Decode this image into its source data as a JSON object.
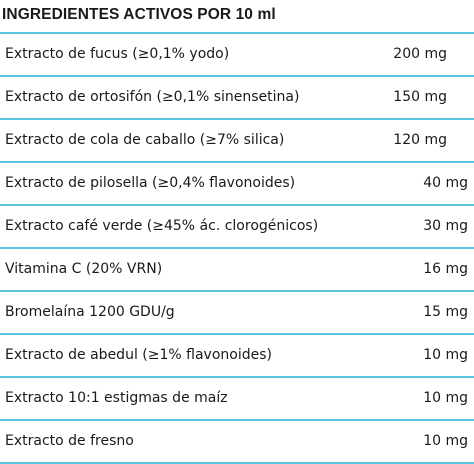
{
  "title": "INGREDIENTES ACTIVOS POR 10 ml",
  "rows": [
    {
      "name": "Extracto de fucus (≥0,1% yodo)",
      "amount": "200 mg"
    },
    {
      "name": "Extracto de ortosifón (≥0,1% sinensetina)",
      "amount": "150 mg"
    },
    {
      "name": "Extracto de cola de caballo (≥7% silica)",
      "amount": "120 mg"
    },
    {
      "name": "Extracto de pilosella (≥0,4% flavonoides)",
      "amount": "40 mg"
    },
    {
      "name": "Extracto café verde (≥45% ác. clorogénicos)",
      "amount": "30 mg"
    },
    {
      "name": "Vitamina C (20% VRN)",
      "amount": "16 mg"
    },
    {
      "name": "Bromelaína 1200 GDU/g",
      "amount": "15 mg"
    },
    {
      "name": "Extracto de abedul (≥1% flavonoides)",
      "amount": "10 mg"
    },
    {
      "name": "Extracto 10:1 estigmas de maíz",
      "amount": "10 mg"
    },
    {
      "name": "Extracto de fresno",
      "amount": "10 mg"
    }
  ],
  "colors": {
    "divider": "#5fc3e4",
    "text": "#1a1a1a"
  }
}
